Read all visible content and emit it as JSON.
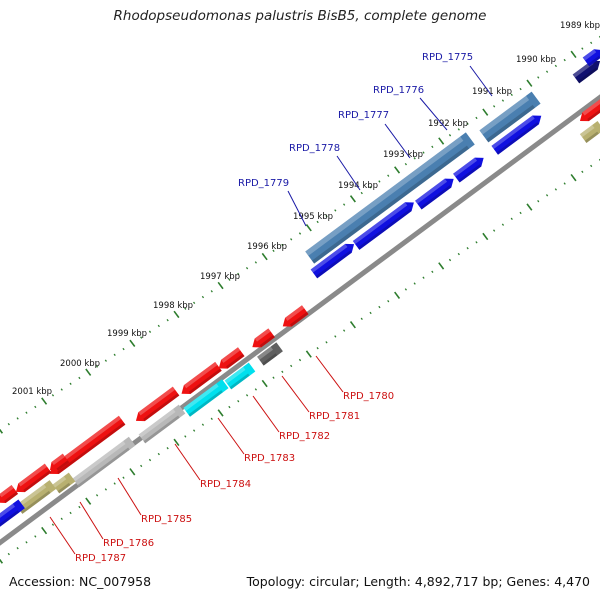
{
  "title": "Rhodopseudomonas palustris BisB5, complete genome",
  "footer": {
    "accession": "Accession: NC_007958",
    "summary": "Topology: circular; Length: 4,892,717 bp; Genes: 4,470"
  },
  "colors": {
    "backbone": "#8a8a8a",
    "tick": "#2e7d2e",
    "label_forward": "#1a1aa6",
    "label_reverse": "#cc1111",
    "cds_forward": "#1010e0",
    "cds_reverse": "#ee1111",
    "rna_forward": "#4a7fb0",
    "gray_reverse": "#b8b8b8",
    "dark_reverse": "#606060",
    "cyan_reverse": "#00e0ee",
    "olive_reverse": "#b8b070"
  },
  "tick_labels": [
    "1989 kbp",
    "1990 kbp",
    "1991 kbp",
    "1992 kbp",
    "1993 kbp",
    "1994 kbp",
    "1995 kbp",
    "1996 kbp",
    "1997 kbp",
    "1998 kbp",
    "1999 kbp",
    "2000 kbp",
    "2001 kbp"
  ],
  "forward_gene_labels": [
    "RPD_1775",
    "RPD_1776",
    "RPD_1777",
    "RPD_1778",
    "RPD_1779"
  ],
  "reverse_gene_labels": [
    "RPD_1780",
    "RPD_1781",
    "RPD_1782",
    "RPD_1783",
    "RPD_1784",
    "RPD_1785",
    "RPD_1786",
    "RPD_1787"
  ]
}
